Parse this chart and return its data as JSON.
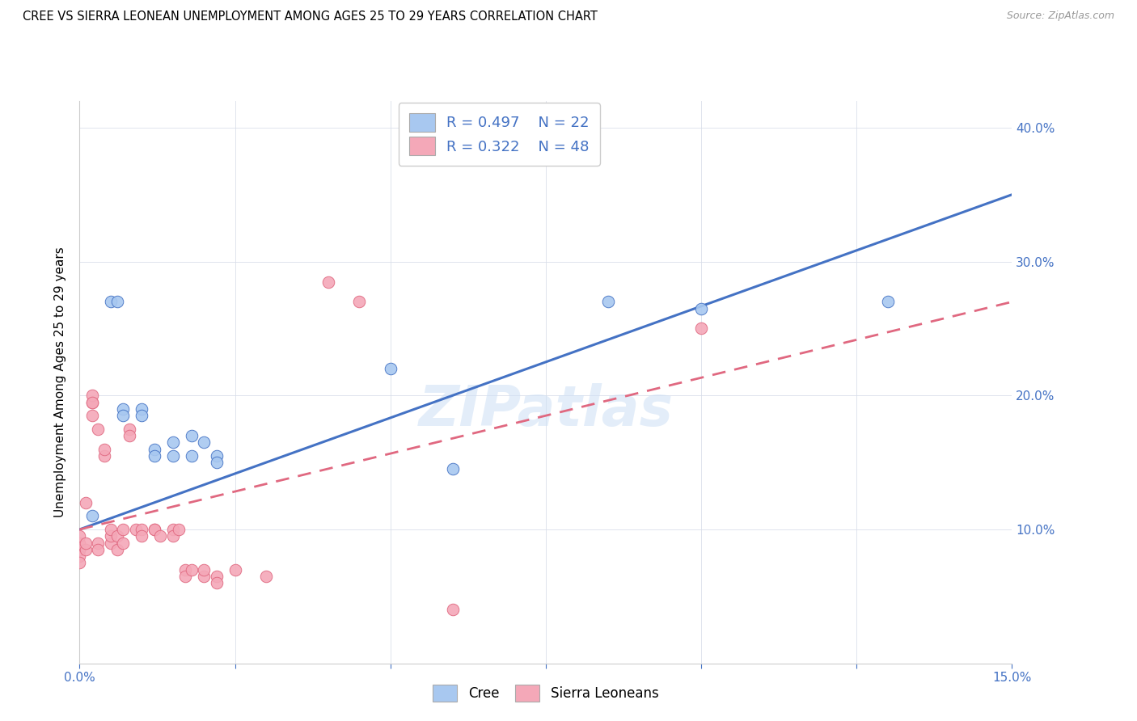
{
  "title": "CREE VS SIERRA LEONEAN UNEMPLOYMENT AMONG AGES 25 TO 29 YEARS CORRELATION CHART",
  "source": "Source: ZipAtlas.com",
  "ylabel": "Unemployment Among Ages 25 to 29 years",
  "xlim": [
    0.0,
    0.15
  ],
  "ylim": [
    0.0,
    0.42
  ],
  "xticks": [
    0.0,
    0.025,
    0.05,
    0.075,
    0.1,
    0.125,
    0.15
  ],
  "xticklabels": [
    "0.0%",
    "",
    "",
    "",
    "",
    "",
    "15.0%"
  ],
  "yticks": [
    0.0,
    0.1,
    0.2,
    0.3,
    0.4
  ],
  "yticklabels": [
    "",
    "10.0%",
    "20.0%",
    "30.0%",
    "40.0%"
  ],
  "cree_color": "#a8c8f0",
  "sierra_color": "#f4a8b8",
  "cree_line_color": "#4472c4",
  "sierra_line_color": "#e06880",
  "tick_color": "#4472c4",
  "watermark": "ZIPatlas",
  "cree_R": 0.497,
  "cree_N": 22,
  "sierra_R": 0.322,
  "sierra_N": 48,
  "cree_intercept": 0.1,
  "cree_slope": 1.667,
  "sierra_intercept": 0.1,
  "sierra_slope": 1.133,
  "cree_points": [
    [
      0.0,
      0.085
    ],
    [
      0.002,
      0.11
    ],
    [
      0.005,
      0.27
    ],
    [
      0.006,
      0.27
    ],
    [
      0.007,
      0.19
    ],
    [
      0.007,
      0.185
    ],
    [
      0.01,
      0.19
    ],
    [
      0.01,
      0.185
    ],
    [
      0.012,
      0.16
    ],
    [
      0.012,
      0.155
    ],
    [
      0.015,
      0.165
    ],
    [
      0.015,
      0.155
    ],
    [
      0.018,
      0.155
    ],
    [
      0.018,
      0.17
    ],
    [
      0.02,
      0.165
    ],
    [
      0.022,
      0.155
    ],
    [
      0.022,
      0.15
    ],
    [
      0.05,
      0.22
    ],
    [
      0.06,
      0.145
    ],
    [
      0.085,
      0.27
    ],
    [
      0.1,
      0.265
    ],
    [
      0.13,
      0.27
    ]
  ],
  "sierra_points": [
    [
      0.0,
      0.085
    ],
    [
      0.0,
      0.08
    ],
    [
      0.0,
      0.09
    ],
    [
      0.0,
      0.075
    ],
    [
      0.0,
      0.095
    ],
    [
      0.001,
      0.085
    ],
    [
      0.001,
      0.09
    ],
    [
      0.001,
      0.12
    ],
    [
      0.002,
      0.195
    ],
    [
      0.002,
      0.2
    ],
    [
      0.002,
      0.185
    ],
    [
      0.002,
      0.195
    ],
    [
      0.003,
      0.09
    ],
    [
      0.003,
      0.085
    ],
    [
      0.003,
      0.175
    ],
    [
      0.004,
      0.155
    ],
    [
      0.004,
      0.16
    ],
    [
      0.005,
      0.09
    ],
    [
      0.005,
      0.095
    ],
    [
      0.005,
      0.1
    ],
    [
      0.006,
      0.095
    ],
    [
      0.006,
      0.085
    ],
    [
      0.007,
      0.1
    ],
    [
      0.007,
      0.09
    ],
    [
      0.008,
      0.175
    ],
    [
      0.008,
      0.17
    ],
    [
      0.009,
      0.1
    ],
    [
      0.01,
      0.1
    ],
    [
      0.01,
      0.095
    ],
    [
      0.012,
      0.1
    ],
    [
      0.012,
      0.1
    ],
    [
      0.013,
      0.095
    ],
    [
      0.015,
      0.1
    ],
    [
      0.015,
      0.095
    ],
    [
      0.016,
      0.1
    ],
    [
      0.017,
      0.07
    ],
    [
      0.017,
      0.065
    ],
    [
      0.018,
      0.07
    ],
    [
      0.02,
      0.065
    ],
    [
      0.02,
      0.07
    ],
    [
      0.022,
      0.065
    ],
    [
      0.022,
      0.06
    ],
    [
      0.025,
      0.07
    ],
    [
      0.03,
      0.065
    ],
    [
      0.04,
      0.285
    ],
    [
      0.045,
      0.27
    ],
    [
      0.06,
      0.04
    ],
    [
      0.1,
      0.25
    ]
  ]
}
